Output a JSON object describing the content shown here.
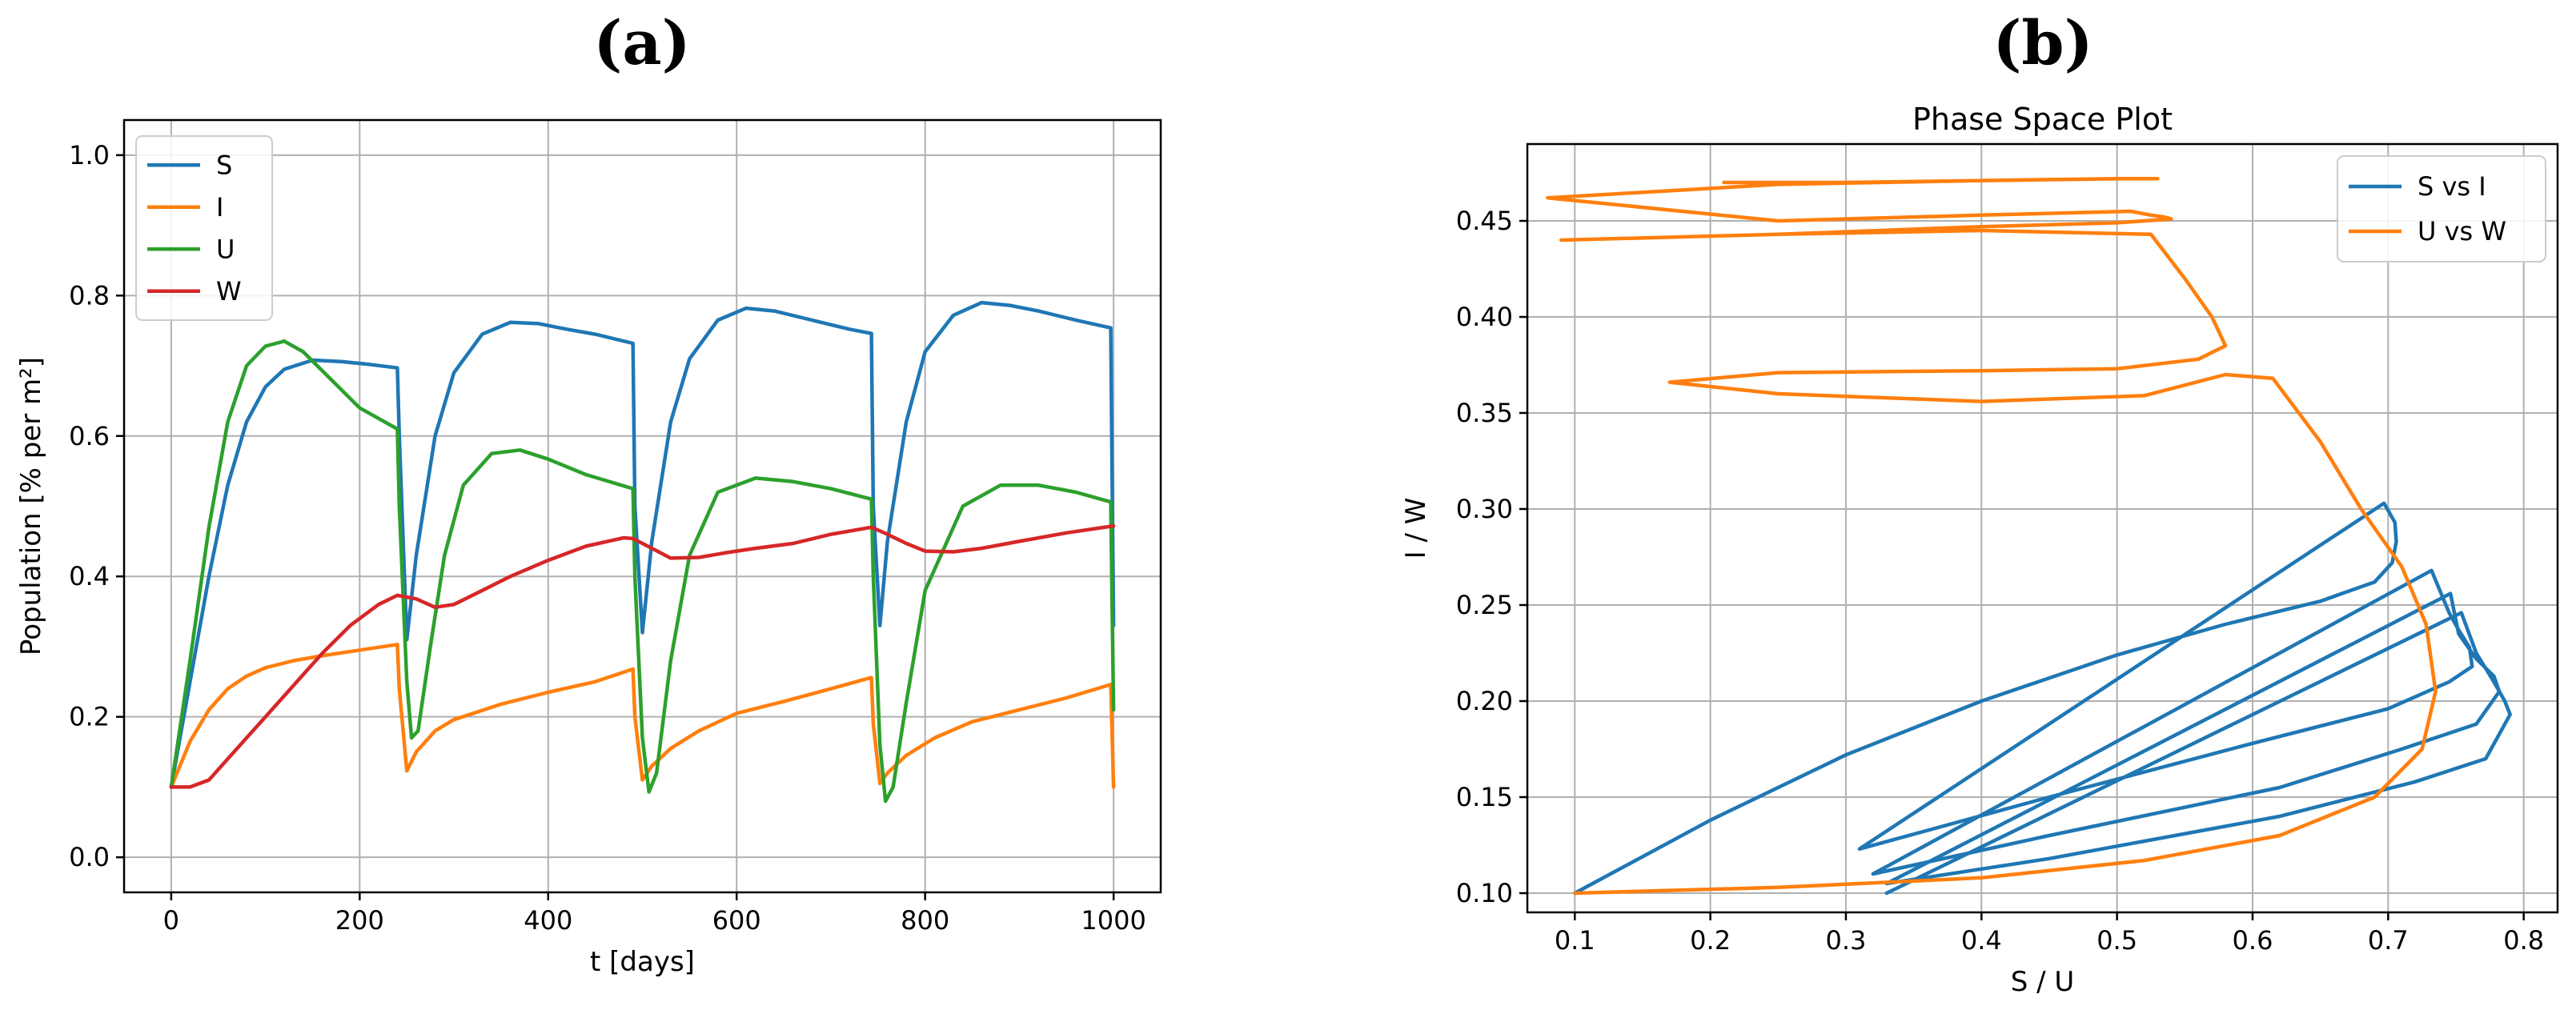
{
  "chart_data": [
    {
      "panel_label": "(a)",
      "type": "line",
      "title": "",
      "xlabel": "t [days]",
      "ylabel": "Population [% per m²]",
      "xlim": [
        -50,
        1050
      ],
      "ylim": [
        -0.05,
        1.05
      ],
      "xticks": [
        0,
        200,
        400,
        600,
        800,
        1000
      ],
      "xtick_labels": [
        "0",
        "200",
        "400",
        "600",
        "800",
        "1000"
      ],
      "yticks": [
        0.0,
        0.2,
        0.4,
        0.6,
        0.8,
        1.0
      ],
      "ytick_labels": [
        "0.0",
        "0.2",
        "0.4",
        "0.6",
        "0.8",
        "1.0"
      ],
      "grid": true,
      "legend_position": "upper-left",
      "series": [
        {
          "name": "S",
          "color": "#1f77b4",
          "x": [
            0,
            20,
            40,
            60,
            80,
            100,
            120,
            150,
            180,
            210,
            240,
            242,
            250,
            260,
            280,
            300,
            330,
            360,
            390,
            420,
            450,
            490,
            492,
            500,
            510,
            530,
            550,
            580,
            610,
            640,
            680,
            720,
            743,
            745,
            752,
            760,
            780,
            800,
            830,
            860,
            890,
            920,
            960,
            997,
            998,
            1000
          ],
          "y": [
            0.1,
            0.25,
            0.4,
            0.53,
            0.62,
            0.67,
            0.695,
            0.708,
            0.706,
            0.702,
            0.697,
            0.6,
            0.31,
            0.43,
            0.6,
            0.69,
            0.745,
            0.762,
            0.76,
            0.752,
            0.745,
            0.732,
            0.5,
            0.32,
            0.45,
            0.62,
            0.71,
            0.765,
            0.782,
            0.778,
            0.765,
            0.752,
            0.746,
            0.5,
            0.33,
            0.45,
            0.62,
            0.72,
            0.772,
            0.79,
            0.786,
            0.778,
            0.765,
            0.754,
            0.6,
            0.33
          ]
        },
        {
          "name": "I",
          "color": "#ff7f0e",
          "x": [
            0,
            20,
            40,
            60,
            80,
            100,
            130,
            160,
            200,
            240,
            242,
            250,
            260,
            280,
            300,
            350,
            400,
            450,
            490,
            492,
            500,
            510,
            530,
            560,
            600,
            650,
            700,
            743,
            745,
            752,
            760,
            780,
            810,
            850,
            900,
            950,
            997,
            1000
          ],
          "y": [
            0.1,
            0.165,
            0.21,
            0.24,
            0.258,
            0.27,
            0.28,
            0.287,
            0.295,
            0.303,
            0.24,
            0.123,
            0.15,
            0.18,
            0.196,
            0.218,
            0.235,
            0.25,
            0.268,
            0.2,
            0.11,
            0.13,
            0.155,
            0.18,
            0.205,
            0.222,
            0.24,
            0.256,
            0.19,
            0.105,
            0.12,
            0.145,
            0.17,
            0.193,
            0.21,
            0.227,
            0.246,
            0.1
          ]
        },
        {
          "name": "U",
          "color": "#2ca02c",
          "x": [
            0,
            20,
            40,
            60,
            80,
            100,
            120,
            140,
            170,
            200,
            240,
            242,
            250,
            255,
            262,
            275,
            290,
            310,
            340,
            370,
            400,
            440,
            490,
            492,
            500,
            507,
            515,
            530,
            550,
            580,
            620,
            660,
            700,
            743,
            745,
            752,
            758,
            766,
            780,
            800,
            840,
            880,
            920,
            960,
            997,
            998,
            1000
          ],
          "y": [
            0.1,
            0.28,
            0.47,
            0.62,
            0.7,
            0.728,
            0.735,
            0.72,
            0.68,
            0.64,
            0.61,
            0.5,
            0.25,
            0.17,
            0.18,
            0.3,
            0.43,
            0.53,
            0.575,
            0.58,
            0.567,
            0.545,
            0.525,
            0.4,
            0.17,
            0.093,
            0.12,
            0.28,
            0.43,
            0.52,
            0.54,
            0.535,
            0.525,
            0.51,
            0.4,
            0.16,
            0.08,
            0.1,
            0.22,
            0.38,
            0.5,
            0.53,
            0.53,
            0.52,
            0.506,
            0.4,
            0.21
          ]
        },
        {
          "name": "W",
          "color": "#d62728",
          "x": [
            0,
            20,
            40,
            60,
            80,
            100,
            130,
            160,
            190,
            220,
            240,
            260,
            280,
            300,
            330,
            360,
            400,
            440,
            480,
            490,
            510,
            530,
            560,
            590,
            620,
            660,
            700,
            743,
            760,
            780,
            800,
            830,
            860,
            900,
            950,
            1000
          ],
          "y": [
            0.1,
            0.1,
            0.11,
            0.14,
            0.17,
            0.2,
            0.245,
            0.29,
            0.33,
            0.36,
            0.373,
            0.368,
            0.356,
            0.36,
            0.38,
            0.4,
            0.423,
            0.443,
            0.455,
            0.454,
            0.44,
            0.426,
            0.427,
            0.434,
            0.44,
            0.447,
            0.46,
            0.47,
            0.46,
            0.447,
            0.436,
            0.435,
            0.44,
            0.45,
            0.462,
            0.472
          ]
        }
      ]
    },
    {
      "panel_label": "(b)",
      "type": "line",
      "title": "Phase Space Plot",
      "xlabel": "S / U",
      "ylabel": "I / W",
      "xlim": [
        0.065,
        0.825
      ],
      "ylim": [
        0.09,
        0.49
      ],
      "xticks": [
        0.1,
        0.2,
        0.3,
        0.4,
        0.5,
        0.6,
        0.7,
        0.8
      ],
      "xtick_labels": [
        "0.1",
        "0.2",
        "0.3",
        "0.4",
        "0.5",
        "0.6",
        "0.7",
        "0.8"
      ],
      "yticks": [
        0.1,
        0.15,
        0.2,
        0.25,
        0.3,
        0.35,
        0.4,
        0.45
      ],
      "ytick_labels": [
        "0.10",
        "0.15",
        "0.20",
        "0.25",
        "0.30",
        "0.35",
        "0.40",
        "0.45"
      ],
      "grid": true,
      "legend_position": "upper-right",
      "series": [
        {
          "name": "S vs I",
          "color": "#1f77b4",
          "x": [
            0.1,
            0.2,
            0.3,
            0.4,
            0.5,
            0.58,
            0.65,
            0.69,
            0.703,
            0.706,
            0.705,
            0.697,
            0.31,
            0.45,
            0.6,
            0.7,
            0.745,
            0.762,
            0.76,
            0.752,
            0.745,
            0.732,
            0.32,
            0.45,
            0.62,
            0.71,
            0.765,
            0.782,
            0.778,
            0.765,
            0.752,
            0.746,
            0.33,
            0.45,
            0.62,
            0.72,
            0.772,
            0.79,
            0.786,
            0.778,
            0.765,
            0.754,
            0.33
          ],
          "y": [
            0.1,
            0.138,
            0.172,
            0.2,
            0.224,
            0.24,
            0.252,
            0.262,
            0.272,
            0.283,
            0.293,
            0.303,
            0.123,
            0.15,
            0.178,
            0.196,
            0.21,
            0.218,
            0.228,
            0.237,
            0.246,
            0.268,
            0.11,
            0.13,
            0.155,
            0.175,
            0.188,
            0.205,
            0.213,
            0.222,
            0.235,
            0.256,
            0.105,
            0.118,
            0.14,
            0.158,
            0.17,
            0.193,
            0.2,
            0.21,
            0.225,
            0.246,
            0.1
          ]
        },
        {
          "name": "U vs W",
          "color": "#ff7f0e",
          "x": [
            0.1,
            0.25,
            0.4,
            0.52,
            0.62,
            0.69,
            0.725,
            0.735,
            0.728,
            0.71,
            0.68,
            0.65,
            0.615,
            0.58,
            0.52,
            0.4,
            0.25,
            0.17,
            0.25,
            0.4,
            0.5,
            0.56,
            0.58,
            0.57,
            0.55,
            0.525,
            0.4,
            0.25,
            0.09,
            0.25,
            0.4,
            0.5,
            0.54,
            0.535,
            0.525,
            0.51,
            0.4,
            0.25,
            0.08,
            0.25,
            0.4,
            0.5,
            0.53,
            0.53,
            0.52,
            0.506,
            0.3,
            0.21
          ],
          "y": [
            0.1,
            0.103,
            0.108,
            0.117,
            0.13,
            0.15,
            0.175,
            0.205,
            0.24,
            0.27,
            0.3,
            0.335,
            0.368,
            0.37,
            0.359,
            0.356,
            0.36,
            0.366,
            0.371,
            0.372,
            0.373,
            0.378,
            0.385,
            0.4,
            0.42,
            0.443,
            0.445,
            0.443,
            0.44,
            0.443,
            0.447,
            0.449,
            0.451,
            0.452,
            0.453,
            0.455,
            0.453,
            0.45,
            0.462,
            0.469,
            0.471,
            0.472,
            0.472,
            0.472,
            0.472,
            0.472,
            0.47,
            0.47
          ]
        }
      ]
    }
  ]
}
